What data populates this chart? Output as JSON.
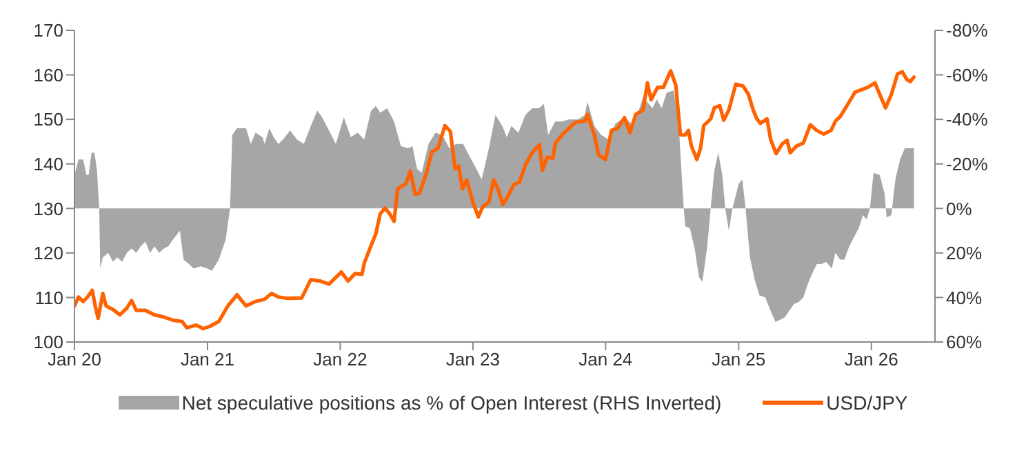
{
  "chart_data": {
    "type": "line",
    "legend": "bottom",
    "xlim": [
      "2020-01-01",
      "2026-06-25"
    ],
    "xticks": [
      {
        "value": "2020-01-01",
        "label": "Jan 20"
      },
      {
        "value": "2021-01-01",
        "label": "Jan 21"
      },
      {
        "value": "2022-01-01",
        "label": "Jan 22"
      },
      {
        "value": "2023-01-01",
        "label": "Jan 23"
      },
      {
        "value": "2024-01-01",
        "label": "Jan 24"
      },
      {
        "value": "2025-01-01",
        "label": "Jan 25"
      },
      {
        "value": "2026-01-01",
        "label": "Jan 26"
      }
    ],
    "ylim": [
      100,
      170
    ],
    "yticks": [
      100,
      110,
      120,
      130,
      140,
      150,
      160,
      170
    ],
    "y2lim": [
      60,
      -80
    ],
    "y2ticks": [
      {
        "value": -80,
        "label": "-80%"
      },
      {
        "value": -60,
        "label": "-60%"
      },
      {
        "value": -40,
        "label": "-40%"
      },
      {
        "value": -20,
        "label": "-20%"
      },
      {
        "value": 0,
        "label": "0%"
      },
      {
        "value": 20,
        "label": "20%"
      },
      {
        "value": 40,
        "label": "40%"
      },
      {
        "value": 60,
        "label": "60%"
      }
    ],
    "series": [
      {
        "name": "Net speculative positions as % of Open Interest (RHS Inverted)",
        "type": "area",
        "axis": "y2",
        "color": "#a6a6a6",
        "x": [
          "2020-01-01",
          "2020-01-12",
          "2020-01-25",
          "2020-02-03",
          "2020-02-09",
          "2020-02-17",
          "2020-02-25",
          "2020-03-03",
          "2020-03-09",
          "2020-03-12",
          "2020-03-19",
          "2020-04-03",
          "2020-04-16",
          "2020-04-28",
          "2020-05-11",
          "2020-05-24",
          "2020-06-06",
          "2020-06-19",
          "2020-07-01",
          "2020-07-14",
          "2020-07-27",
          "2020-08-08",
          "2020-08-21",
          "2020-09-03",
          "2020-09-15",
          "2020-09-28",
          "2020-10-17",
          "2020-10-27",
          "2020-11-11",
          "2020-11-24",
          "2020-12-13",
          "2021-01-01",
          "2021-01-13",
          "2021-02-01",
          "2021-02-20",
          "2021-03-04",
          "2021-03-10",
          "2021-03-23",
          "2021-04-17",
          "2021-04-30",
          "2021-05-13",
          "2021-06-01",
          "2021-06-07",
          "2021-06-20",
          "2021-07-02",
          "2021-07-15",
          "2021-07-28",
          "2021-08-16",
          "2021-09-04",
          "2021-09-23",
          "2021-10-12",
          "2021-10-30",
          "2021-11-12",
          "2021-12-01",
          "2021-12-20",
          "2022-01-11",
          "2022-01-30",
          "2022-02-18",
          "2022-03-08",
          "2022-03-27",
          "2022-04-09",
          "2022-04-21",
          "2022-05-10",
          "2022-05-29",
          "2022-06-17",
          "2022-07-06",
          "2022-07-19",
          "2022-07-31",
          "2022-08-13",
          "2022-09-01",
          "2022-09-20",
          "2022-10-09",
          "2022-10-28",
          "2022-11-16",
          "2022-12-05",
          "2022-12-24",
          "2023-01-13",
          "2023-01-25",
          "2023-02-14",
          "2023-03-04",
          "2023-03-23",
          "2023-04-04",
          "2023-04-17",
          "2023-05-06",
          "2023-05-25",
          "2023-06-13",
          "2023-07-02",
          "2023-07-15",
          "2023-07-27",
          "2023-08-15",
          "2023-09-03",
          "2023-09-22",
          "2023-10-17",
          "2023-11-05",
          "2023-11-12",
          "2023-12-01",
          "2023-12-20",
          "2024-01-09",
          "2024-01-28",
          "2024-02-22",
          "2024-03-19",
          "2024-04-13",
          "2024-05-09",
          "2024-05-21",
          "2024-06-03",
          "2024-06-17",
          "2024-07-06",
          "2024-07-19",
          "2024-07-29",
          "2024-08-03",
          "2024-08-07",
          "2024-08-20",
          "2024-09-02",
          "2024-09-14",
          "2024-09-23",
          "2024-10-06",
          "2024-10-16",
          "2024-10-26",
          "2024-11-06",
          "2024-11-17",
          "2024-11-25",
          "2024-12-05",
          "2024-12-15",
          "2025-01-01",
          "2025-01-11",
          "2025-01-20",
          "2025-02-01",
          "2025-02-14",
          "2025-02-27",
          "2025-03-15",
          "2025-03-30",
          "2025-04-12",
          "2025-04-25",
          "2025-05-07",
          "2025-05-20",
          "2025-06-02",
          "2025-06-15",
          "2025-06-28",
          "2025-07-10",
          "2025-07-23",
          "2025-08-04",
          "2025-08-17",
          "2025-08-30",
          "2025-09-14",
          "2025-09-24",
          "2025-10-07",
          "2025-10-19",
          "2025-11-01",
          "2025-11-14",
          "2025-11-27",
          "2025-12-09",
          "2025-12-19",
          "2025-12-28",
          "2026-01-07",
          "2026-01-24",
          "2026-02-06",
          "2026-02-12",
          "2026-02-25",
          "2026-03-08",
          "2026-03-21",
          "2026-04-03",
          "2026-04-16",
          "2026-04-28"
        ],
        "values": [
          -15,
          -22,
          -22,
          -15,
          -15,
          -25,
          -25,
          -17,
          0,
          27,
          22,
          20,
          24,
          22,
          24,
          20,
          18,
          20,
          17,
          15,
          20,
          17,
          20,
          18,
          17,
          14,
          10,
          23,
          25,
          27,
          26,
          27,
          28,
          23,
          14,
          0,
          -33,
          -36,
          -36,
          -29,
          -34,
          -32,
          -29,
          -36,
          -32,
          -29,
          -31,
          -35,
          -31,
          -29,
          -37,
          -44,
          -41,
          -35,
          -29,
          -41,
          -32,
          -34,
          -31,
          -44,
          -46,
          -43,
          -45,
          -39,
          -28,
          -27,
          -28,
          -18,
          -16,
          -29,
          -34,
          -33,
          -27,
          -29,
          -29,
          -23,
          -17,
          -13,
          -27,
          -42,
          -37,
          -32,
          -37,
          -34,
          -42,
          -45,
          -45,
          -47,
          -33,
          -39,
          -39,
          -40,
          -40,
          -42,
          -48,
          -37,
          -33,
          -31,
          -38,
          -41,
          -37,
          -50,
          -45,
          -49,
          -45,
          -52,
          -53,
          -41,
          -13,
          0,
          8,
          9,
          18,
          31,
          33,
          18,
          0,
          -17,
          -25,
          -15,
          0,
          10,
          0,
          -11,
          -13,
          0,
          22,
          32,
          39,
          40,
          46,
          51,
          50,
          49,
          46,
          43,
          42,
          40,
          34,
          29,
          25,
          25,
          24,
          27,
          20,
          23,
          23,
          17,
          13,
          9,
          3,
          5,
          0,
          -16,
          -15,
          -7,
          4,
          3,
          -13,
          -22,
          -27,
          -27,
          -27
        ]
      },
      {
        "name": "USD/JPY",
        "color": "#ff6200",
        "x": [
          "2020-01-01",
          "2020-01-12",
          "2020-01-25",
          "2020-02-06",
          "2020-02-19",
          "2020-02-27",
          "2020-03-06",
          "2020-03-19",
          "2020-03-28",
          "2020-04-16",
          "2020-05-05",
          "2020-05-24",
          "2020-06-06",
          "2020-06-19",
          "2020-07-14",
          "2020-08-08",
          "2020-09-03",
          "2020-09-28",
          "2020-10-23",
          "2020-11-05",
          "2020-12-01",
          "2020-12-20",
          "2021-01-07",
          "2021-02-01",
          "2021-02-26",
          "2021-03-23",
          "2021-04-17",
          "2021-05-13",
          "2021-06-07",
          "2021-06-26",
          "2021-07-15",
          "2021-08-10",
          "2021-09-17",
          "2021-10-12",
          "2021-11-06",
          "2021-12-01",
          "2022-01-04",
          "2022-01-23",
          "2022-02-11",
          "2022-03-02",
          "2022-03-08",
          "2022-03-27",
          "2022-04-09",
          "2022-04-21",
          "2022-05-04",
          "2022-05-17",
          "2022-05-29",
          "2022-06-08",
          "2022-07-01",
          "2022-07-13",
          "2022-07-26",
          "2022-08-07",
          "2022-08-26",
          "2022-09-10",
          "2022-09-27",
          "2022-10-16",
          "2022-10-31",
          "2022-11-13",
          "2022-11-23",
          "2022-12-03",
          "2022-12-15",
          "2023-01-01",
          "2023-01-16",
          "2023-01-28",
          "2023-02-14",
          "2023-02-27",
          "2023-03-11",
          "2023-03-24",
          "2023-04-05",
          "2023-04-24",
          "2023-05-09",
          "2023-05-26",
          "2023-06-13",
          "2023-07-03",
          "2023-07-11",
          "2023-07-24",
          "2023-08-09",
          "2023-08-16",
          "2023-09-03",
          "2023-09-22",
          "2023-10-11",
          "2023-11-05",
          "2023-11-12",
          "2023-12-01",
          "2023-12-13",
          "2024-01-01",
          "2024-01-17",
          "2024-02-03",
          "2024-02-22",
          "2024-03-08",
          "2024-03-24",
          "2024-04-13",
          "2024-04-25",
          "2024-05-05",
          "2024-05-23",
          "2024-06-08",
          "2024-06-28",
          "2024-07-12",
          "2024-07-25",
          "2024-08-07",
          "2024-08-16",
          "2024-08-24",
          "2024-09-08",
          "2024-09-18",
          "2024-09-27",
          "2024-10-16",
          "2024-10-26",
          "2024-11-10",
          "2024-11-21",
          "2024-12-05",
          "2024-12-24",
          "2025-01-13",
          "2025-01-28",
          "2025-02-10",
          "2025-02-20",
          "2025-03-02",
          "2025-03-20",
          "2025-03-30",
          "2025-04-14",
          "2025-05-01",
          "2025-05-14",
          "2025-05-23",
          "2025-06-09",
          "2025-06-28",
          "2025-07-17",
          "2025-08-04",
          "2025-08-23",
          "2025-09-12",
          "2025-09-24",
          "2025-10-07",
          "2025-10-26",
          "2025-11-17",
          "2025-12-03",
          "2025-12-22",
          "2026-01-11",
          "2026-01-24",
          "2026-02-09",
          "2026-02-25",
          "2026-03-14",
          "2026-03-27",
          "2026-04-09",
          "2026-04-18",
          "2026-04-28"
        ],
        "values": [
          108.1,
          110.1,
          109.1,
          110.1,
          111.6,
          108.1,
          105.3,
          110.9,
          108.1,
          107.3,
          106.1,
          107.6,
          109.3,
          107.1,
          107.1,
          106.1,
          105.6,
          104.9,
          104.6,
          103.2,
          103.8,
          103.0,
          103.5,
          104.6,
          108.1,
          110.6,
          108.1,
          109.1,
          109.6,
          110.9,
          110.1,
          109.8,
          109.9,
          114.0,
          113.7,
          113.0,
          115.7,
          113.7,
          115.4,
          115.2,
          117.7,
          121.7,
          124.3,
          128.8,
          130.1,
          128.8,
          127.1,
          134.4,
          135.6,
          138.4,
          133.2,
          133.4,
          137.9,
          142.7,
          143.5,
          148.6,
          147.3,
          138.9,
          139.5,
          134.4,
          136.4,
          131.4,
          128.1,
          130.4,
          131.4,
          136.4,
          134.4,
          130.9,
          132.4,
          135.4,
          135.9,
          139.9,
          142.5,
          144.3,
          138.6,
          141.5,
          141.3,
          144.7,
          146.5,
          148.0,
          149.4,
          149.6,
          151.1,
          146.5,
          142.0,
          141.0,
          147.5,
          148.0,
          150.4,
          147.0,
          151.1,
          152.1,
          158.2,
          154.4,
          157.2,
          157.2,
          160.9,
          157.7,
          146.5,
          146.5,
          147.5,
          144.0,
          141.0,
          143.5,
          148.6,
          150.1,
          152.6,
          153.1,
          149.8,
          152.1,
          157.9,
          157.5,
          155.6,
          152.1,
          150.1,
          149.1,
          150.1,
          145.5,
          142.3,
          144.5,
          145.3,
          142.5,
          144.0,
          144.7,
          148.8,
          147.5,
          146.7,
          147.5,
          149.6,
          150.6,
          153.1,
          156.1,
          156.6,
          157.2,
          158.2,
          155.6,
          152.6,
          155.6,
          160.2,
          160.7,
          158.9,
          158.5,
          159.5
        ]
      }
    ]
  }
}
